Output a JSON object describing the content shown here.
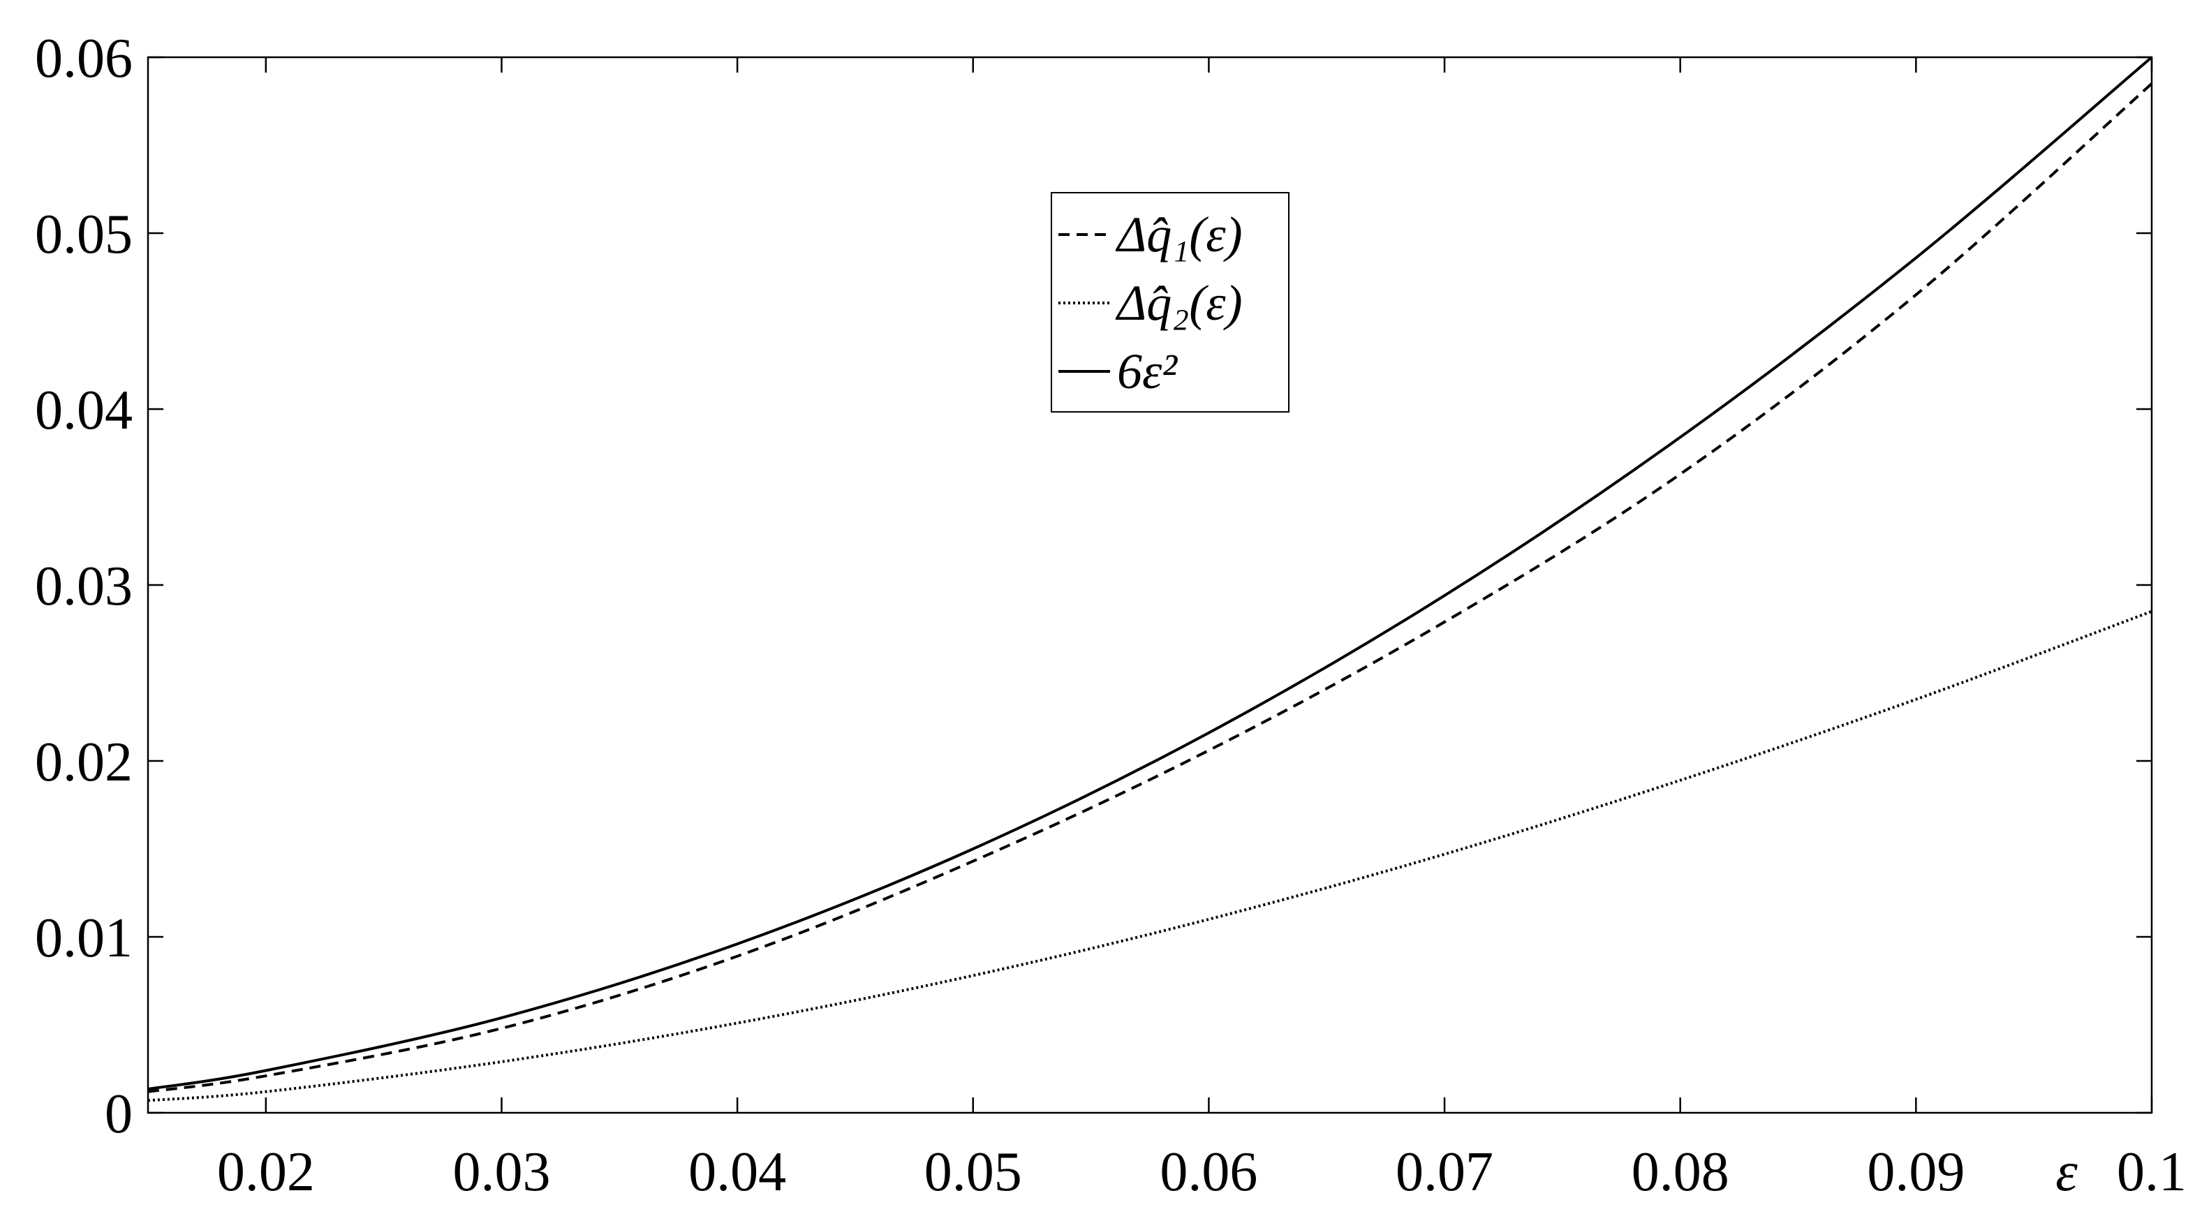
{
  "chart_data": {
    "type": "line",
    "title": "",
    "xlabel": "ε",
    "ylabel": "",
    "xlim": [
      0.015,
      0.1
    ],
    "ylim": [
      0,
      0.06
    ],
    "grid": false,
    "legend_placement": "top-center",
    "x_ticks": [
      0.02,
      0.03,
      0.04,
      0.05,
      0.06,
      0.07,
      0.08,
      0.09,
      0.1
    ],
    "x_tick_labels": [
      "0.02",
      "0.03",
      "0.04",
      "0.05",
      "0.06",
      "0.07",
      "0.08",
      "0.09",
      "0.1"
    ],
    "y_ticks": [
      0,
      0.01,
      0.02,
      0.03,
      0.04,
      0.05,
      0.06
    ],
    "y_tick_labels": [
      "0",
      "0.01",
      "0.02",
      "0.03",
      "0.04",
      "0.05",
      "0.06"
    ],
    "x": [
      0.015,
      0.02,
      0.03,
      0.04,
      0.05,
      0.06,
      0.07,
      0.08,
      0.09,
      0.1
    ],
    "series": [
      {
        "name": "Δq̂₁(ε)",
        "style": "dashed",
        "color": "#000000",
        "values": [
          0.0012,
          0.0021,
          0.0048,
          0.0089,
          0.0143,
          0.0206,
          0.0279,
          0.0363,
          0.0465,
          0.0585
        ]
      },
      {
        "name": "Δq̂₂(ε)",
        "style": "dotted",
        "color": "#000000",
        "values": [
          0.0007,
          0.0012,
          0.0029,
          0.0051,
          0.0078,
          0.011,
          0.0147,
          0.0189,
          0.0235,
          0.0285
        ]
      },
      {
        "name": "6ε²",
        "style": "solid",
        "color": "#000000",
        "values": [
          0.00135,
          0.0024,
          0.0054,
          0.0096,
          0.015,
          0.0216,
          0.0294,
          0.0384,
          0.0486,
          0.06
        ]
      }
    ]
  }
}
